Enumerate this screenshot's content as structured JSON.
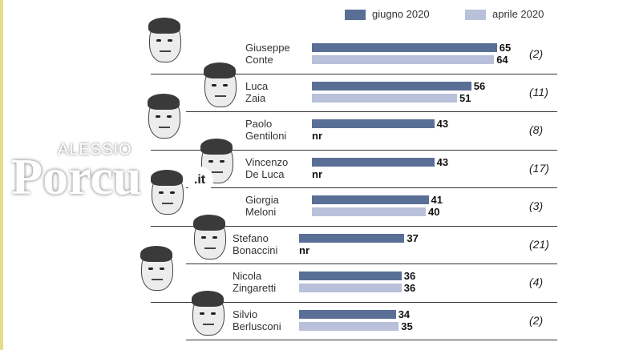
{
  "legend": [
    {
      "label": "giugno 2020",
      "color": "#5a6f96"
    },
    {
      "label": "aprile 2020",
      "color": "#b9c0d9"
    }
  ],
  "watermark": {
    "small": "ALESSIO",
    "big": "Porcu",
    "suffix": ".it"
  },
  "chart_data": {
    "type": "bar",
    "orientation": "horizontal",
    "categories": [
      [
        "Giuseppe",
        "Conte"
      ],
      [
        "Luca",
        "Zaia"
      ],
      [
        "Paolo",
        "Gentiloni"
      ],
      [
        "Vincenzo",
        "De Luca"
      ],
      [
        "Giorgia",
        "Meloni"
      ],
      [
        "Stefano",
        "Bonaccini"
      ],
      [
        "Nicola",
        "Zingaretti"
      ],
      [
        "Silvio",
        "Berlusconi"
      ]
    ],
    "series": [
      {
        "name": "giugno 2020",
        "color": "#5a6f96",
        "values": [
          65,
          56,
          43,
          43,
          41,
          37,
          36,
          34
        ]
      },
      {
        "name": "aprile 2020",
        "color": "#b9c0d9",
        "values": [
          64,
          51,
          null,
          null,
          40,
          null,
          36,
          35
        ]
      }
    ],
    "missing_label": "nr",
    "ranks": [
      "(2)",
      "(11)",
      "(8)",
      "(17)",
      "(3)",
      "(21)",
      "(4)",
      "(2)"
    ],
    "xlim": [
      0,
      70
    ],
    "legend_position": "top-right"
  }
}
